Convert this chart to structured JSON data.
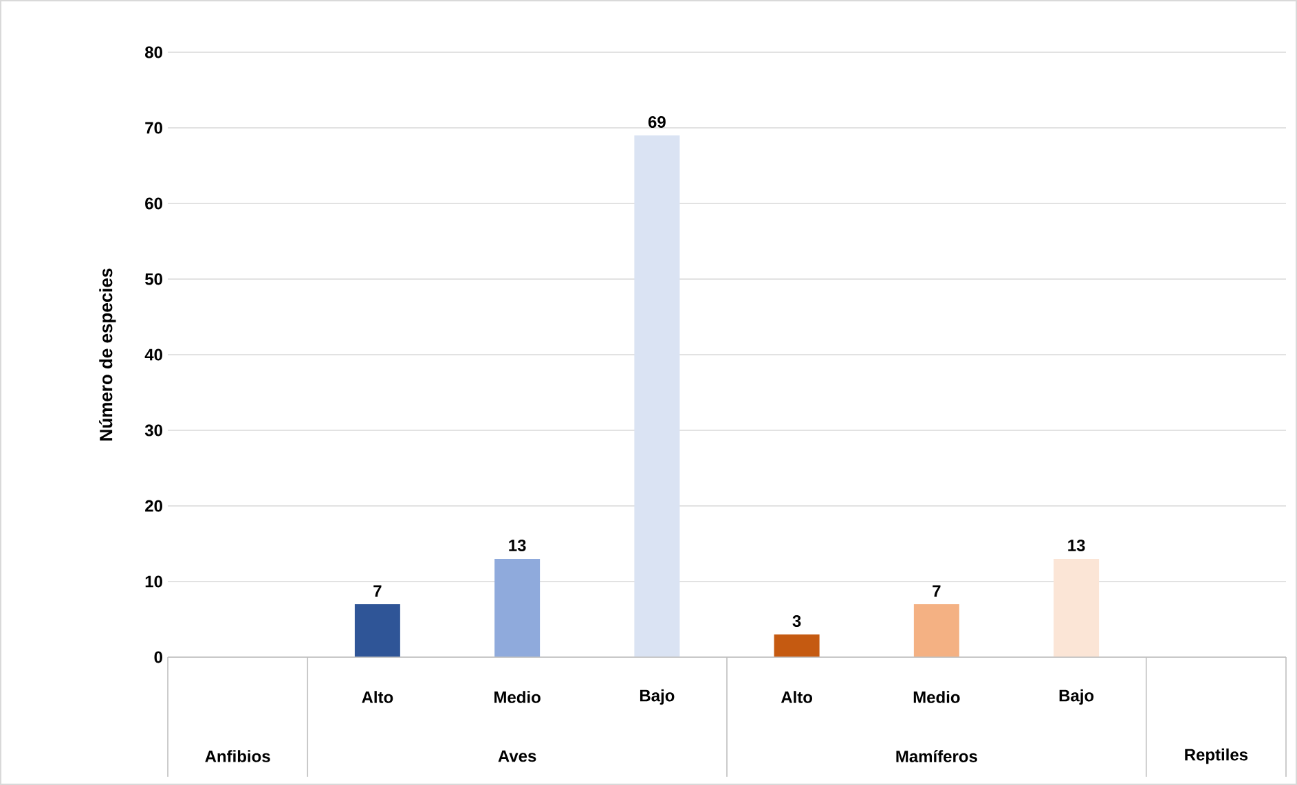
{
  "chart_data": {
    "type": "bar",
    "ylabel": "Número de especies",
    "categories": [
      null,
      "Alto",
      "Medio",
      "Bajo",
      "Alto",
      "Medio",
      "Bajo",
      null
    ],
    "values": [
      null,
      7,
      13,
      69,
      3,
      7,
      13,
      null
    ],
    "colors": [
      null,
      "#2f5597",
      "#8faadc",
      "#dae3f3",
      "#c55a11",
      "#f4b183",
      "#fbe5d6",
      null
    ],
    "annotations": [
      "Anfibios",
      "Aves",
      "Mamíferos",
      "Reptiles"
    ],
    "ylim": [
      0,
      80
    ],
    "yticks": [
      0,
      10,
      20,
      30,
      40,
      50,
      60,
      70,
      80
    ],
    "grid": "y",
    "data_labels": true
  }
}
